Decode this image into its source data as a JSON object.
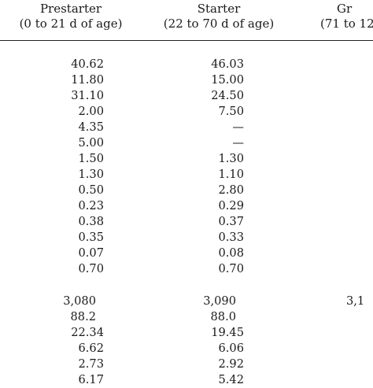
{
  "columns": [
    {
      "key": "prestarter",
      "title": "Prestarter",
      "subtitle": "(0 to 21 d of age)"
    },
    {
      "key": "starter",
      "title": "Starter",
      "subtitle": "(22 to 70 d of age)"
    },
    {
      "key": "grower",
      "title": "Gr",
      "subtitle": "(71 to 12"
    }
  ],
  "section1": {
    "prestarter": [
      "40.62",
      "11.80",
      "31.10",
      "2.00",
      "4.35",
      "5.00",
      "1.50",
      "1.30",
      "0.50",
      "0.23",
      "0.38",
      "0.35",
      "0.07",
      "0.70"
    ],
    "starter": [
      "46.03",
      "15.00",
      "24.50",
      "7.50",
      "—",
      "—",
      "1.30",
      "1.10",
      "2.80",
      "0.29",
      "0.37",
      "0.33",
      "0.08",
      "0.70"
    ]
  },
  "section2": {
    "prestarter": [
      "3,080",
      "88.2",
      "22.34",
      "6.62",
      "2.73",
      "6.17"
    ],
    "starter": [
      "3,090",
      "88.0",
      "19.45",
      "6.06",
      "2.92",
      "5.42"
    ],
    "grower_partial": [
      "3,1"
    ]
  }
}
